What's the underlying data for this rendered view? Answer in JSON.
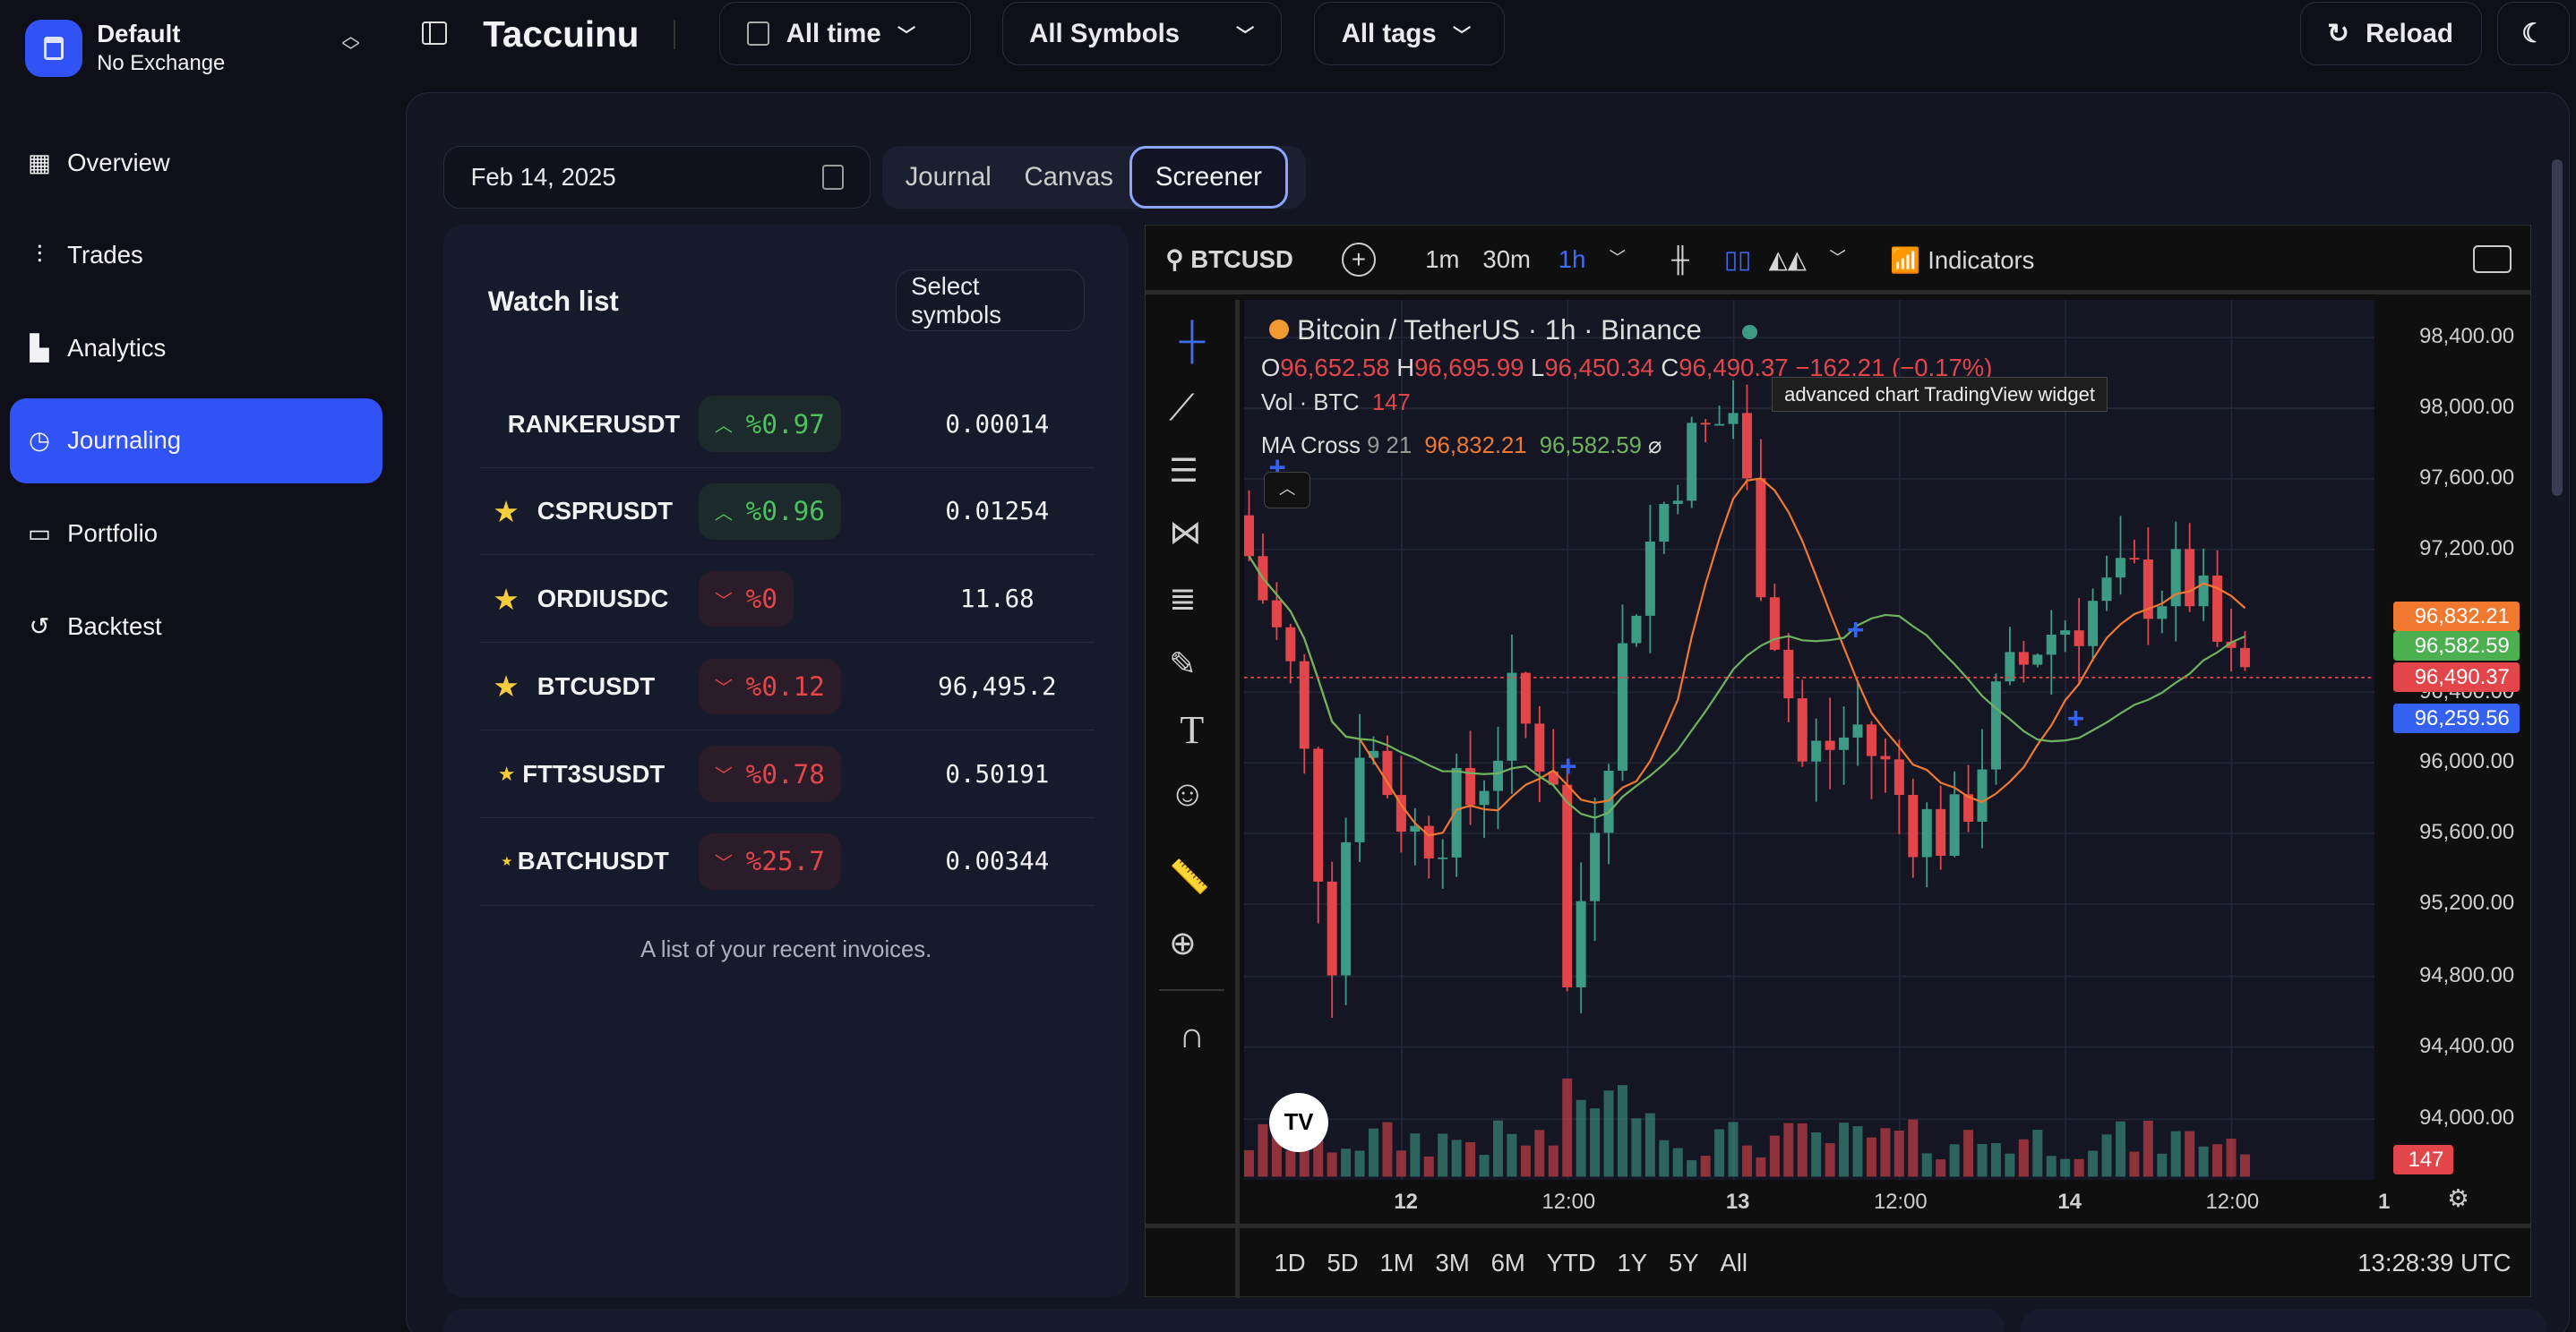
{
  "workspace": {
    "name": "Default",
    "sub": "No Exchange"
  },
  "sidebar": {
    "items": [
      {
        "label": "Overview",
        "icon": "grid-icon"
      },
      {
        "label": "Trades",
        "icon": "chart-icon"
      },
      {
        "label": "Analytics",
        "icon": "bar-chart-icon"
      },
      {
        "label": "Journaling",
        "icon": "calendar-clock-icon",
        "active": true
      },
      {
        "label": "Portfolio",
        "icon": "wallet-icon"
      },
      {
        "label": "Backtest",
        "icon": "history-icon"
      }
    ]
  },
  "header": {
    "title": "Taccuinu",
    "time_filter": "All time",
    "symbols_filter": "All Symbols",
    "tags_filter": "All tags",
    "reload": "Reload"
  },
  "date": "Feb 14, 2025",
  "tabs": [
    {
      "label": "Journal"
    },
    {
      "label": "Canvas"
    },
    {
      "label": "Screener",
      "active": true
    }
  ],
  "watchlist": {
    "title": "Watch list",
    "select_button": "Select symbols",
    "caption": "A list of your recent invoices.",
    "rows": [
      {
        "symbol": "RANKERUSDT",
        "star": 0,
        "dir": "up",
        "change": "%0.97",
        "price": "0.00014"
      },
      {
        "symbol": "CSPRUSDT",
        "star": 3,
        "dir": "up",
        "change": "%0.96",
        "price": "0.01254"
      },
      {
        "symbol": "ORDIUSDC",
        "star": 3,
        "dir": "down",
        "change": "%0",
        "price": "11.68"
      },
      {
        "symbol": "BTCUSDT",
        "star": 3,
        "dir": "down",
        "change": "%0.12",
        "price": "96,495.2"
      },
      {
        "symbol": "FTT3SUSDT",
        "star": 2,
        "dir": "down",
        "change": "%0.78",
        "price": "0.50191"
      },
      {
        "symbol": "BATCHUSDT",
        "star": 1,
        "dir": "down",
        "change": "%25.7",
        "price": "0.00344"
      }
    ]
  },
  "chart": {
    "symbol": "BTCUSD",
    "intervals": [
      "1m",
      "30m",
      "1h"
    ],
    "active_interval": "1h",
    "indicators": "Indicators",
    "title": "Bitcoin / TetherUS · 1h · Binance",
    "ohlc": {
      "o": "96,652.58",
      "h": "96,695.99",
      "l": "96,450.34",
      "c": "96,490.37",
      "chg": "−162.21 (−0.17%)"
    },
    "vol_label": "Vol · BTC",
    "vol": "147",
    "ma_label": "MA Cross",
    "ma_params": "9 21",
    "ma1": "96,832.21",
    "ma2": "96,582.59",
    "tooltip": "advanced chart TradingView widget",
    "price_ticks": [
      "98,400.00",
      "98,000.00",
      "97,600.00",
      "97,200.00",
      "96,400.00",
      "96,000.00",
      "95,600.00",
      "95,200.00",
      "94,800.00",
      "94,400.00",
      "94,000.00"
    ],
    "price_tags": [
      {
        "v": "96,832.21",
        "c": "#f0782f"
      },
      {
        "v": "96,582.59",
        "c": "#4caf50"
      },
      {
        "v": "96,490.37",
        "c": "#e2464b"
      },
      {
        "v": "96,259.56",
        "c": "#3461f2"
      }
    ],
    "vol_tag": "147",
    "time_ticks": [
      "12",
      "12:00",
      "13",
      "12:00",
      "14",
      "12:00",
      "1"
    ],
    "ranges": [
      "1D",
      "5D",
      "1M",
      "3M",
      "6M",
      "YTD",
      "1Y",
      "5Y",
      "All"
    ],
    "clock": "13:28:39 UTC",
    "colors": {
      "up": "#3d9a85",
      "down": "#e2464b"
    },
    "price_path": [
      [
        0,
        97400
      ],
      [
        4,
        96500
      ],
      [
        7,
        95000
      ],
      [
        9,
        96200
      ],
      [
        13,
        95600
      ],
      [
        17,
        95800
      ],
      [
        20,
        96300
      ],
      [
        23,
        96000
      ],
      [
        24,
        94700
      ],
      [
        26,
        95800
      ],
      [
        29,
        97000
      ],
      [
        32,
        97700
      ],
      [
        36,
        98000
      ],
      [
        37,
        97500
      ],
      [
        39,
        96800
      ],
      [
        41,
        96000
      ],
      [
        45,
        96200
      ],
      [
        49,
        95700
      ],
      [
        52,
        95600
      ],
      [
        55,
        96300
      ],
      [
        58,
        96700
      ],
      [
        62,
        96900
      ],
      [
        65,
        97000
      ],
      [
        69,
        97000
      ],
      [
        72,
        96490
      ]
    ]
  }
}
